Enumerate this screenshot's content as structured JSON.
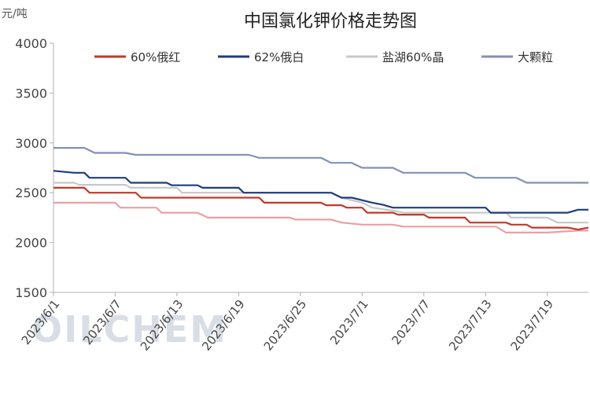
{
  "chart_data": {
    "type": "line",
    "title": "中国氯化钾价格走势图",
    "ylabel": "元/吨",
    "watermark": "OILCHEM",
    "ylim": [
      1500,
      4000
    ],
    "yticks": [
      1500,
      2000,
      2500,
      3000,
      3500,
      4000
    ],
    "x_range": [
      0,
      52
    ],
    "xtick_labels": [
      {
        "label": "2023/6/1",
        "x": 0
      },
      {
        "label": "2023/6/7",
        "x": 6
      },
      {
        "label": "2023/6/13",
        "x": 12
      },
      {
        "label": "2023/6/19",
        "x": 18
      },
      {
        "label": "2023/6/25",
        "x": 24
      },
      {
        "label": "2023/7/1",
        "x": 30
      },
      {
        "label": "2023/7/7",
        "x": 36
      },
      {
        "label": "2023/7/13",
        "x": 42
      },
      {
        "label": "2023/7/19",
        "x": 48
      }
    ],
    "series": [
      {
        "name": "60%俄红",
        "color": "#c0392b",
        "points": [
          [
            0,
            2550
          ],
          [
            3,
            2550
          ],
          [
            3.5,
            2500
          ],
          [
            8,
            2500
          ],
          [
            8.5,
            2450
          ],
          [
            20,
            2450
          ],
          [
            20.5,
            2400
          ],
          [
            26,
            2400
          ],
          [
            26.5,
            2375
          ],
          [
            28,
            2375
          ],
          [
            28.5,
            2350
          ],
          [
            30,
            2350
          ],
          [
            30.5,
            2300
          ],
          [
            33,
            2300
          ],
          [
            33.5,
            2280
          ],
          [
            36,
            2280
          ],
          [
            36.5,
            2250
          ],
          [
            40,
            2250
          ],
          [
            40.5,
            2200
          ],
          [
            44,
            2200
          ],
          [
            44.5,
            2180
          ],
          [
            46,
            2180
          ],
          [
            46.5,
            2150
          ],
          [
            50,
            2150
          ],
          [
            51,
            2130
          ],
          [
            52,
            2150
          ]
        ]
      },
      {
        "name": "62%俄白",
        "color": "#1f3d7a",
        "points": [
          [
            0,
            2720
          ],
          [
            2,
            2700
          ],
          [
            3,
            2700
          ],
          [
            3.5,
            2650
          ],
          [
            7,
            2650
          ],
          [
            7.5,
            2600
          ],
          [
            11,
            2600
          ],
          [
            11.5,
            2575
          ],
          [
            14,
            2575
          ],
          [
            14.5,
            2550
          ],
          [
            18,
            2550
          ],
          [
            18.5,
            2500
          ],
          [
            27,
            2500
          ],
          [
            28,
            2450
          ],
          [
            29,
            2450
          ],
          [
            31,
            2400
          ],
          [
            32,
            2380
          ],
          [
            33,
            2350
          ],
          [
            42,
            2350
          ],
          [
            42.5,
            2300
          ],
          [
            49,
            2300
          ],
          [
            50,
            2300
          ],
          [
            51,
            2330
          ],
          [
            52,
            2330
          ]
        ]
      },
      {
        "name": "盐湖60%晶",
        "color": "#c8c8c8",
        "points": [
          [
            0,
            2600
          ],
          [
            2,
            2600
          ],
          [
            2.5,
            2580
          ],
          [
            7,
            2580
          ],
          [
            7.5,
            2550
          ],
          [
            12,
            2550
          ],
          [
            12.5,
            2500
          ],
          [
            27,
            2500
          ],
          [
            28,
            2450
          ],
          [
            30,
            2400
          ],
          [
            31,
            2350
          ],
          [
            33,
            2320
          ],
          [
            34,
            2300
          ],
          [
            44,
            2300
          ],
          [
            44.5,
            2250
          ],
          [
            48,
            2250
          ],
          [
            49,
            2200
          ],
          [
            52,
            2200
          ]
        ]
      },
      {
        "name": "大颗粒",
        "color": "#8191b5",
        "points": [
          [
            0,
            2950
          ],
          [
            3,
            2950
          ],
          [
            4,
            2900
          ],
          [
            7,
            2900
          ],
          [
            8,
            2880
          ],
          [
            19,
            2880
          ],
          [
            20,
            2850
          ],
          [
            26,
            2850
          ],
          [
            27,
            2800
          ],
          [
            29,
            2800
          ],
          [
            30,
            2750
          ],
          [
            33,
            2750
          ],
          [
            34,
            2700
          ],
          [
            40,
            2700
          ],
          [
            41,
            2650
          ],
          [
            45,
            2650
          ],
          [
            46,
            2600
          ],
          [
            52,
            2600
          ]
        ]
      },
      {
        "name": "lower pink",
        "legend": false,
        "color": "#e8a0a6",
        "points": [
          [
            0,
            2400
          ],
          [
            6,
            2400
          ],
          [
            6.5,
            2350
          ],
          [
            10,
            2350
          ],
          [
            10.5,
            2300
          ],
          [
            14,
            2300
          ],
          [
            15,
            2250
          ],
          [
            23,
            2250
          ],
          [
            23.5,
            2230
          ],
          [
            27,
            2230
          ],
          [
            28,
            2200
          ],
          [
            30,
            2180
          ],
          [
            33,
            2180
          ],
          [
            34,
            2160
          ],
          [
            43,
            2160
          ],
          [
            44,
            2100
          ],
          [
            48,
            2100
          ],
          [
            51,
            2120
          ],
          [
            52,
            2120
          ]
        ]
      }
    ],
    "legend": [
      "60%俄红",
      "62%俄白",
      "盐湖60%晶",
      "大颗粒"
    ],
    "legend_position": "top"
  }
}
